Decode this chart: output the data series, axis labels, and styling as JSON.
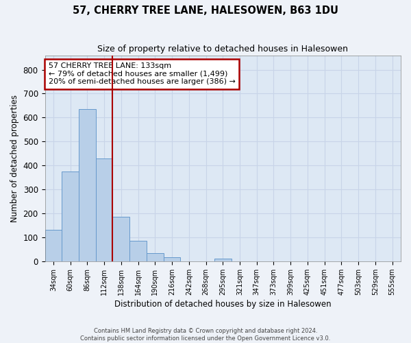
{
  "title": "57, CHERRY TREE LANE, HALESOWEN, B63 1DU",
  "subtitle": "Size of property relative to detached houses in Halesowen",
  "xlabel": "Distribution of detached houses by size in Halesowen",
  "ylabel": "Number of detached properties",
  "bin_labels": [
    "34sqm",
    "60sqm",
    "86sqm",
    "112sqm",
    "138sqm",
    "164sqm",
    "190sqm",
    "216sqm",
    "242sqm",
    "268sqm",
    "295sqm",
    "321sqm",
    "347sqm",
    "373sqm",
    "399sqm",
    "425sqm",
    "451sqm",
    "477sqm",
    "503sqm",
    "529sqm",
    "555sqm"
  ],
  "bar_heights": [
    130,
    375,
    635,
    430,
    185,
    85,
    35,
    17,
    0,
    0,
    10,
    0,
    0,
    0,
    0,
    0,
    0,
    0,
    0,
    0,
    0
  ],
  "bar_color": "#b8cfe8",
  "bar_edgecolor": "#6699cc",
  "ylim": [
    0,
    860
  ],
  "yticks": [
    0,
    100,
    200,
    300,
    400,
    500,
    600,
    700,
    800
  ],
  "vline_x_index": 3.5,
  "annotation_text": "57 CHERRY TREE LANE: 133sqm\n← 79% of detached houses are smaller (1,499)\n20% of semi-detached houses are larger (386) →",
  "annotation_box_color": "#ffffff",
  "annotation_box_edgecolor": "#aa0000",
  "vline_color": "#aa0000",
  "footer_line1": "Contains HM Land Registry data © Crown copyright and database right 2024.",
  "footer_line2": "Contains public sector information licensed under the Open Government Licence v3.0.",
  "grid_color": "#c8d4e8",
  "background_color": "#dde8f4",
  "fig_background": "#eef2f8"
}
